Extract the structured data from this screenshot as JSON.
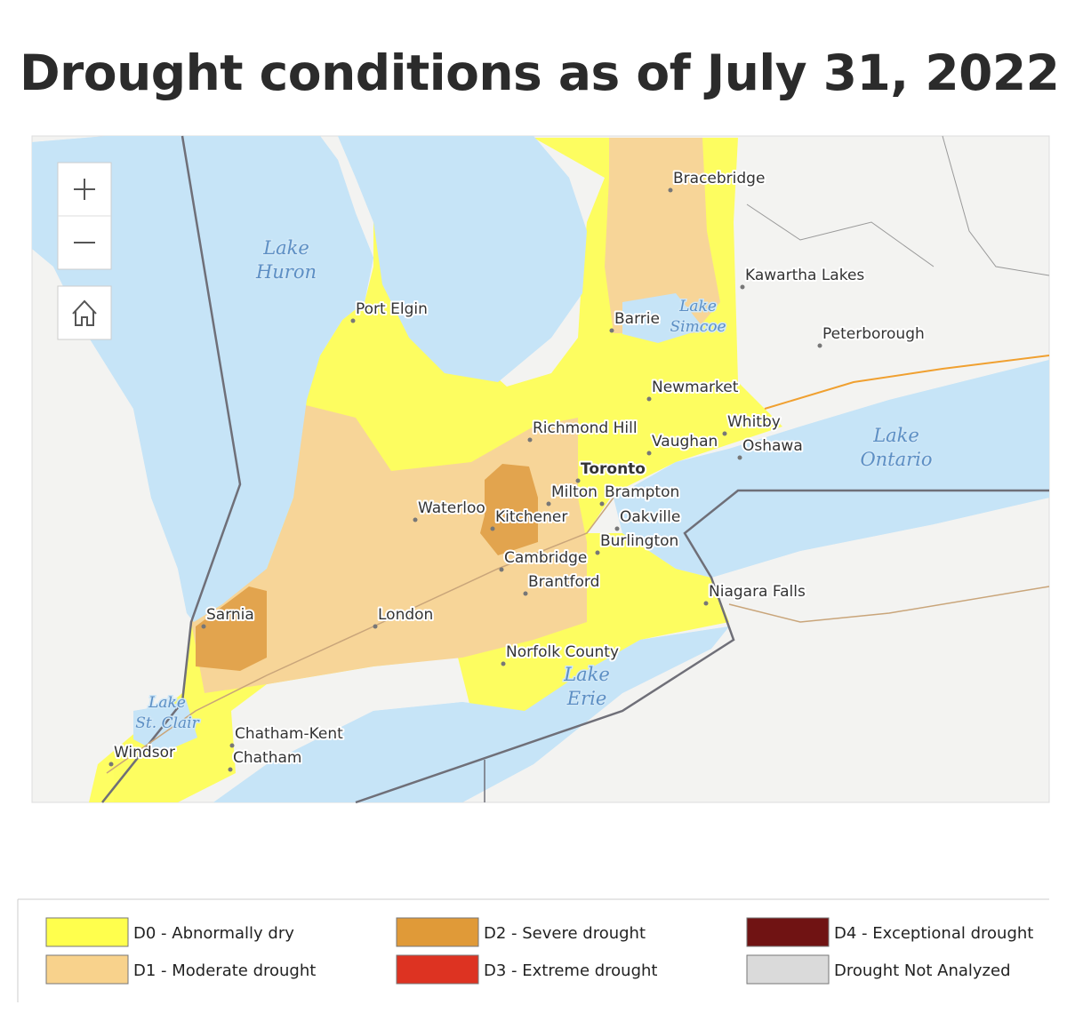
{
  "title": "Drought conditions as of July 31, 2022",
  "map": {
    "water_labels": [
      [
        "Lake",
        "Huron"
      ],
      [
        "Lake",
        "Simcoe"
      ],
      [
        "Lake",
        "Ontario"
      ],
      [
        "Lake",
        "Erie"
      ],
      [
        "Lake",
        "St. Clair"
      ]
    ],
    "city_labels": [
      "Bracebridge",
      "Kawartha Lakes",
      "Port Elgin",
      "Barrie",
      "Peterborough",
      "Newmarket",
      "Richmond Hill",
      "Whitby",
      "Vaughan",
      "Oshawa",
      "Toronto",
      "Milton",
      "Brampton",
      "Waterloo",
      "Kitchener",
      "Oakville",
      "Burlington",
      "Cambridge",
      "Brantford",
      "Niagara Falls",
      "Sarnia",
      "London",
      "Norfolk County",
      "Chatham-Kent",
      "Chatham",
      "Windsor"
    ]
  },
  "legend": [
    {
      "label": "D0 - Abnormally dry",
      "color": "#ffff4d"
    },
    {
      "label": "D1 - Moderate drought",
      "color": "#f8d28c"
    },
    {
      "label": "D2 - Severe drought",
      "color": "#e09a38"
    },
    {
      "label": "D3 - Extreme drought",
      "color": "#dd3322"
    },
    {
      "label": "D4 - Exceptional drought",
      "color": "#701313"
    },
    {
      "label": "Drought Not Analyzed",
      "color": "#dadada"
    }
  ]
}
